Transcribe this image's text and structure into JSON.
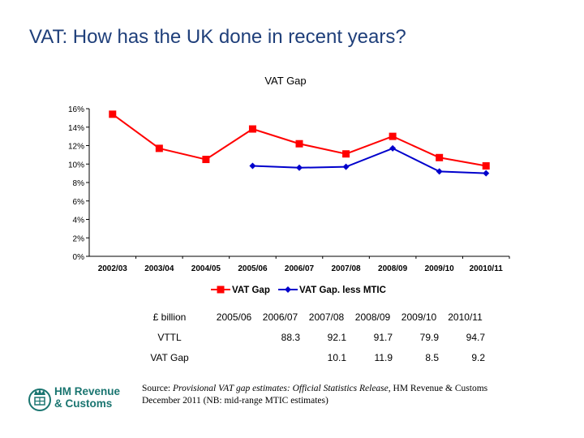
{
  "slide": {
    "title": "VAT: How has the UK done in recent years?"
  },
  "colors": {
    "title": "#1f3f7a",
    "vat_gap": "#ff0000",
    "vat_gap_less_mtic": "#0000cc",
    "logo": "#1a7570"
  },
  "chart_data": {
    "type": "line",
    "title": "VAT Gap",
    "categories": [
      "2002/03",
      "2003/04",
      "2004/05",
      "2005/06",
      "2006/07",
      "2007/08",
      "2008/09",
      "2009/10",
      "20010/11"
    ],
    "y_ticks": [
      "0%",
      "2%",
      "4%",
      "6%",
      "8%",
      "10%",
      "12%",
      "14%",
      "16%"
    ],
    "ylim": [
      0,
      16
    ],
    "grid": false,
    "legend_position": "bottom",
    "series": [
      {
        "name": "VAT Gap",
        "marker": "square",
        "values": [
          15.4,
          11.7,
          10.5,
          13.8,
          12.2,
          11.1,
          13.0,
          10.7,
          9.8
        ]
      },
      {
        "name": "VAT Gap. less MTIC",
        "marker": "diamond",
        "values": [
          null,
          null,
          null,
          9.8,
          9.6,
          9.7,
          11.7,
          9.2,
          9.0
        ]
      }
    ]
  },
  "table": {
    "unit_label": "£ billion",
    "years": [
      "2005/06",
      "2006/07",
      "2007/08",
      "2008/09",
      "2009/10",
      "2010/11"
    ],
    "rows": [
      {
        "label": "VTTL",
        "values": [
          "",
          "88.3",
          "92.1",
          "91.7",
          "79.9",
          "94.7"
        ]
      },
      {
        "label": "VAT Gap",
        "values": [
          "",
          "",
          "10.1",
          "11.9",
          "8.5",
          "9.2"
        ]
      }
    ]
  },
  "source": {
    "prefix": "Source: ",
    "publication": "Provisional VAT gap estimates: Official Statistics Release",
    "suffix": ", HM Revenue & Customs December 2011 (NB: mid-range MTIC estimates)"
  },
  "logo": {
    "line1": "HM Revenue",
    "line2": "& Customs",
    "icon": "crown-crest-icon"
  }
}
